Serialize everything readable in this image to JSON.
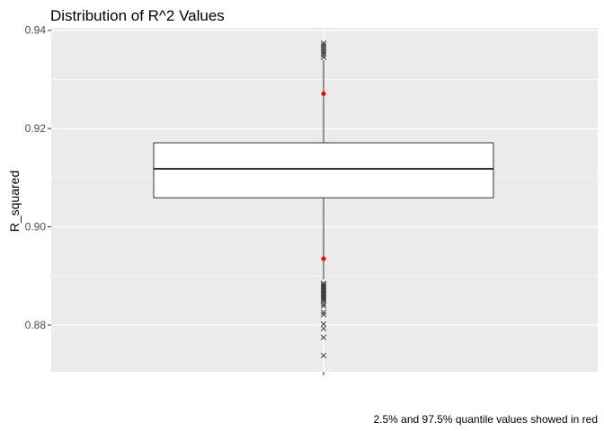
{
  "chart_data": {
    "type": "boxplot",
    "title": "Distribution of R^2 Values",
    "xlabel": "",
    "ylabel": "R_squared",
    "caption": "2.5% and 97.5% quantile values showed in red",
    "ylim": [
      0.8705,
      0.9405
    ],
    "y_ticks": [
      0.88,
      0.9,
      0.92,
      0.94
    ],
    "y_tick_labels": [
      "0.88",
      "0.90",
      "0.92",
      "0.94"
    ],
    "grid": true,
    "box": {
      "q1": 0.9059,
      "median": 0.9118,
      "q3": 0.9171,
      "whisker_low": 0.8893,
      "whisker_high": 0.9339
    },
    "outliers": [
      0.8738,
      0.8775,
      0.8793,
      0.8802,
      0.8821,
      0.8826,
      0.8839,
      0.8843,
      0.8849,
      0.8852,
      0.8855,
      0.8858,
      0.8861,
      0.8864,
      0.8867,
      0.887,
      0.8873,
      0.8876,
      0.8879,
      0.8882,
      0.8885,
      0.9345,
      0.935,
      0.9354,
      0.9358,
      0.9362,
      0.9366,
      0.937,
      0.9374
    ],
    "quantiles": {
      "p2_5": 0.8935,
      "p97_5": 0.9271
    },
    "colors": {
      "panel": "#ebebeb",
      "grid_major": "#ffffff",
      "box_fill": "#ffffff",
      "box_line": "#333333",
      "quantile_points": "#ff0000",
      "outlier_points": "#333333"
    }
  }
}
